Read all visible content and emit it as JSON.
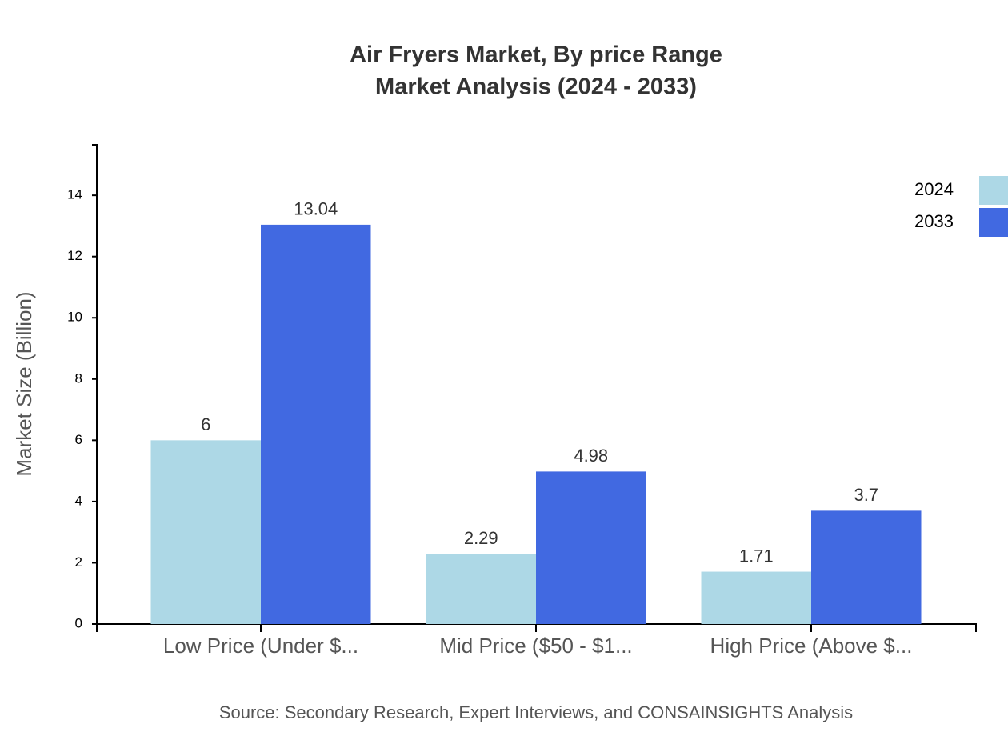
{
  "chart_data": {
    "type": "bar",
    "title": [
      "Air Fryers Market, By price Range",
      "Market Analysis (2024 - 2033)"
    ],
    "y_label": "Market Size (Billion)",
    "source": "Source: Secondary Research, Expert Interviews, and CONSAINSIGHTS Analysis",
    "categories": [
      "Low Price (Under $...",
      "Mid Price ($50 - $1...",
      "High Price (Above $..."
    ],
    "series": [
      {
        "name": "2024",
        "color": "#add8e6",
        "values": [
          6,
          2.29,
          1.71
        ]
      },
      {
        "name": "2033",
        "color": "#4169e1",
        "values": [
          13.04,
          4.98,
          3.7
        ]
      }
    ],
    "ylim": [
      0,
      15.65
    ],
    "yticks": [
      0,
      2,
      4,
      6,
      8,
      10,
      12,
      14
    ]
  }
}
